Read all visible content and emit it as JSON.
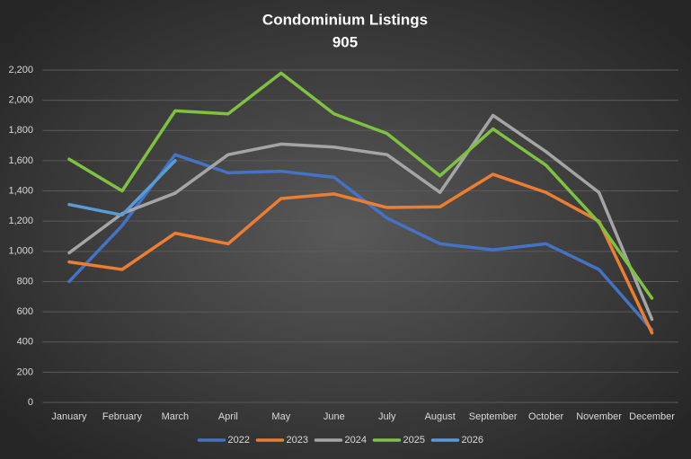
{
  "chart_data": {
    "type": "line",
    "title": "Condominium Listings",
    "subtitle": "905",
    "categories": [
      "January",
      "February",
      "March",
      "April",
      "May",
      "June",
      "July",
      "August",
      "September",
      "October",
      "November",
      "December"
    ],
    "series": [
      {
        "name": "2022",
        "color": "#4472c4",
        "values": [
          800,
          1170,
          1640,
          1520,
          1530,
          1490,
          1220,
          1050,
          1010,
          1050,
          880,
          480
        ]
      },
      {
        "name": "2023",
        "color": "#ed7d31",
        "values": [
          930,
          880,
          1120,
          1050,
          1350,
          1380,
          1290,
          1295,
          1510,
          1390,
          1200,
          460
        ]
      },
      {
        "name": "2024",
        "color": "#a5a5a5",
        "values": [
          990,
          1250,
          1385,
          1640,
          1710,
          1690,
          1640,
          1390,
          1900,
          1660,
          1390,
          550
        ]
      },
      {
        "name": "2025",
        "color": "#7fc241",
        "values": [
          1610,
          1400,
          1930,
          1910,
          2180,
          1910,
          1780,
          1500,
          1810,
          1570,
          1190,
          690
        ]
      },
      {
        "name": "2026",
        "color": "#5b9bd5",
        "values": [
          1310,
          1240,
          1600,
          null,
          null,
          null,
          null,
          null,
          null,
          null,
          null,
          null
        ]
      }
    ],
    "ylim": [
      0,
      2200
    ],
    "yticks": [
      0,
      200,
      400,
      600,
      800,
      {
        "value": 1000,
        "label": "1,000"
      },
      {
        "value": 1200,
        "label": "1,200"
      },
      {
        "value": 1400,
        "label": "1,400"
      },
      {
        "value": 1600,
        "label": "1,600"
      },
      {
        "value": 1800,
        "label": "1,800"
      },
      {
        "value": 2000,
        "label": "2,000"
      },
      {
        "value": 2200,
        "label": "2,200"
      }
    ],
    "grid": true,
    "legend": "bottom"
  }
}
